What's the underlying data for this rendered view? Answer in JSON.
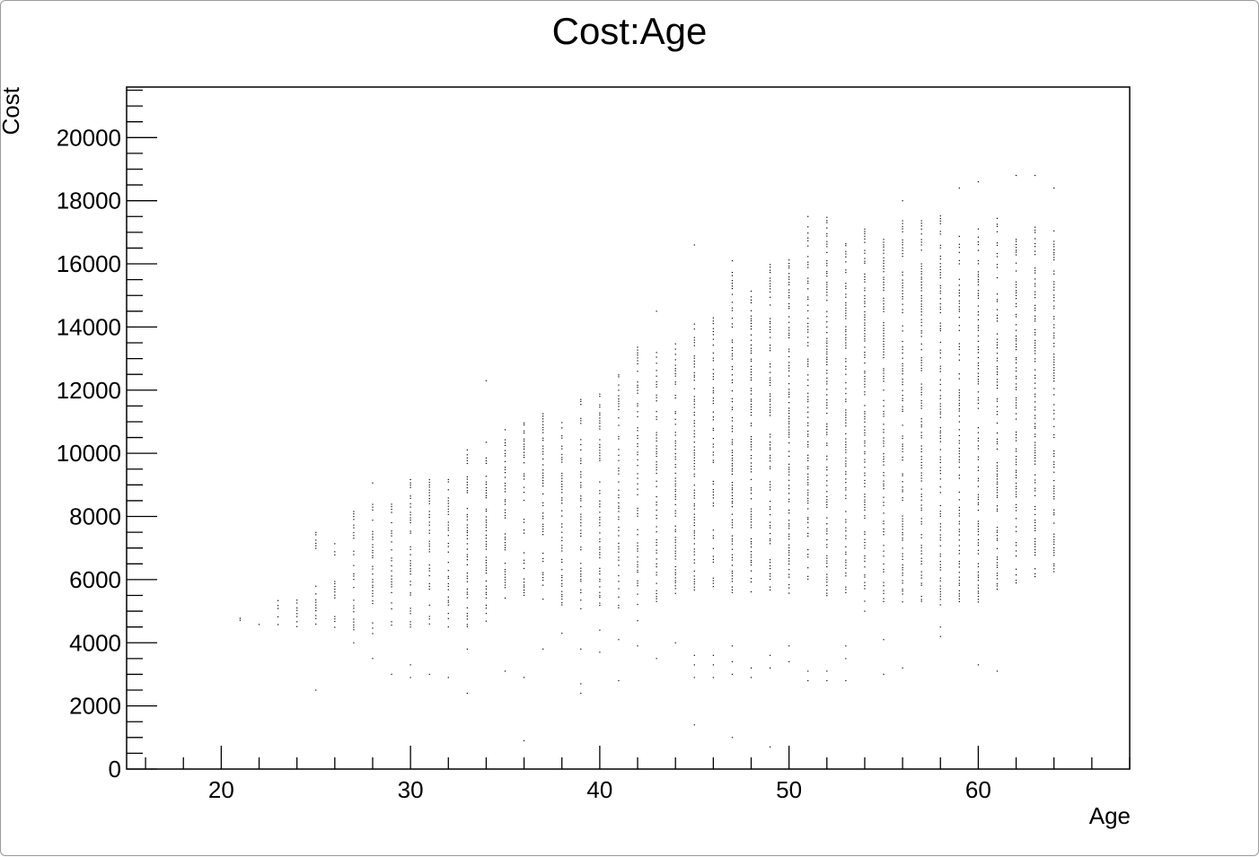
{
  "chart_data": {
    "type": "scatter",
    "title": "Cost:Age",
    "xlabel": "Age",
    "ylabel": "Cost",
    "xlim": [
      15,
      68
    ],
    "ylim": [
      0,
      21600
    ],
    "x_ticks": [
      20,
      30,
      40,
      50,
      60
    ],
    "y_ticks": [
      0,
      2000,
      4000,
      6000,
      8000,
      10000,
      12000,
      14000,
      16000,
      18000,
      20000
    ],
    "x_minor_step": 2,
    "y_minor_step": 500,
    "grid": false,
    "legend": "none",
    "marker_color": "#000000",
    "bands": [
      {
        "age": 21,
        "ranges": [
          [
            4700,
            4850
          ]
        ]
      },
      {
        "age": 22,
        "ranges": [
          [
            4500,
            4650
          ]
        ]
      },
      {
        "age": 23,
        "ranges": [
          [
            4400,
            5600
          ]
        ]
      },
      {
        "age": 24,
        "ranges": [
          [
            4500,
            5400
          ]
        ]
      },
      {
        "age": 25,
        "ranges": [
          [
            4600,
            5900
          ],
          [
            6900,
            7500
          ]
        ]
      },
      {
        "age": 26,
        "ranges": [
          [
            4500,
            6000
          ],
          [
            6700,
            7200
          ]
        ]
      },
      {
        "age": 27,
        "ranges": [
          [
            4400,
            6500
          ],
          [
            6800,
            8200
          ]
        ]
      },
      {
        "age": 28,
        "ranges": [
          [
            4300,
            9100
          ]
        ]
      },
      {
        "age": 29,
        "ranges": [
          [
            4400,
            8600
          ]
        ]
      },
      {
        "age": 30,
        "ranges": [
          [
            4400,
            9200
          ]
        ]
      },
      {
        "age": 31,
        "ranges": [
          [
            4500,
            9200
          ]
        ]
      },
      {
        "age": 32,
        "ranges": [
          [
            4500,
            9200
          ]
        ]
      },
      {
        "age": 33,
        "ranges": [
          [
            4500,
            10200
          ]
        ]
      },
      {
        "age": 34,
        "ranges": [
          [
            4500,
            10400
          ]
        ]
      },
      {
        "age": 35,
        "ranges": [
          [
            5400,
            10800
          ]
        ]
      },
      {
        "age": 36,
        "ranges": [
          [
            5500,
            7000
          ],
          [
            7400,
            11000
          ]
        ]
      },
      {
        "age": 37,
        "ranges": [
          [
            5300,
            11300
          ]
        ]
      },
      {
        "age": 38,
        "ranges": [
          [
            5200,
            11100
          ]
        ]
      },
      {
        "age": 39,
        "ranges": [
          [
            5000,
            11800
          ]
        ]
      },
      {
        "age": 40,
        "ranges": [
          [
            5000,
            12100
          ]
        ]
      },
      {
        "age": 41,
        "ranges": [
          [
            5100,
            12700
          ]
        ]
      },
      {
        "age": 42,
        "ranges": [
          [
            5200,
            13400
          ]
        ]
      },
      {
        "age": 43,
        "ranges": [
          [
            5300,
            13300
          ]
        ]
      },
      {
        "age": 44,
        "ranges": [
          [
            5300,
            13500
          ]
        ]
      },
      {
        "age": 45,
        "ranges": [
          [
            5600,
            14100
          ]
        ]
      },
      {
        "age": 46,
        "ranges": [
          [
            5700,
            14300
          ]
        ]
      },
      {
        "age": 47,
        "ranges": [
          [
            5600,
            15800
          ]
        ]
      },
      {
        "age": 48,
        "ranges": [
          [
            5600,
            15200
          ]
        ]
      },
      {
        "age": 49,
        "ranges": [
          [
            5600,
            16000
          ]
        ]
      },
      {
        "age": 50,
        "ranges": [
          [
            5400,
            16200
          ]
        ]
      },
      {
        "age": 51,
        "ranges": [
          [
            5600,
            17500
          ]
        ]
      },
      {
        "age": 52,
        "ranges": [
          [
            5400,
            17500
          ]
        ]
      },
      {
        "age": 53,
        "ranges": [
          [
            5600,
            16700
          ]
        ]
      },
      {
        "age": 54,
        "ranges": [
          [
            5300,
            17300
          ]
        ]
      },
      {
        "age": 55,
        "ranges": [
          [
            5300,
            16800
          ]
        ]
      },
      {
        "age": 56,
        "ranges": [
          [
            5200,
            17500
          ]
        ]
      },
      {
        "age": 57,
        "ranges": [
          [
            5300,
            17500
          ]
        ]
      },
      {
        "age": 58,
        "ranges": [
          [
            5200,
            17600
          ]
        ]
      },
      {
        "age": 59,
        "ranges": [
          [
            5300,
            16900
          ]
        ]
      },
      {
        "age": 60,
        "ranges": [
          [
            5300,
            17200
          ]
        ]
      },
      {
        "age": 61,
        "ranges": [
          [
            5700,
            17500
          ]
        ]
      },
      {
        "age": 62,
        "ranges": [
          [
            5900,
            16900
          ]
        ]
      },
      {
        "age": 63,
        "ranges": [
          [
            6100,
            17200
          ]
        ]
      },
      {
        "age": 64,
        "ranges": [
          [
            6000,
            17100
          ]
        ]
      }
    ],
    "points": [
      [
        25,
        2500
      ],
      [
        27,
        4000
      ],
      [
        28,
        3500
      ],
      [
        29,
        3000
      ],
      [
        30,
        2900
      ],
      [
        30,
        3300
      ],
      [
        31,
        3000
      ],
      [
        32,
        2900
      ],
      [
        33,
        2400
      ],
      [
        33,
        3800
      ],
      [
        34,
        12300
      ],
      [
        35,
        3100
      ],
      [
        36,
        2900
      ],
      [
        36,
        900
      ],
      [
        37,
        3800
      ],
      [
        38,
        4300
      ],
      [
        39,
        2400
      ],
      [
        39,
        2700
      ],
      [
        39,
        3800
      ],
      [
        40,
        3700
      ],
      [
        40,
        4400
      ],
      [
        41,
        2800
      ],
      [
        41,
        4100
      ],
      [
        42,
        4700
      ],
      [
        42,
        3900
      ],
      [
        43,
        3500
      ],
      [
        43,
        14500
      ],
      [
        44,
        4000
      ],
      [
        45,
        2900
      ],
      [
        45,
        3300
      ],
      [
        45,
        3600
      ],
      [
        45,
        1400
      ],
      [
        45,
        16600
      ],
      [
        46,
        2900
      ],
      [
        46,
        3300
      ],
      [
        46,
        3600
      ],
      [
        47,
        3000
      ],
      [
        47,
        3400
      ],
      [
        47,
        3900
      ],
      [
        47,
        1000
      ],
      [
        47,
        16100
      ],
      [
        48,
        2900
      ],
      [
        48,
        3200
      ],
      [
        49,
        3200
      ],
      [
        49,
        3600
      ],
      [
        49,
        700
      ],
      [
        50,
        3400
      ],
      [
        50,
        3900
      ],
      [
        51,
        2800
      ],
      [
        51,
        3100
      ],
      [
        52,
        2800
      ],
      [
        52,
        3100
      ],
      [
        53,
        2800
      ],
      [
        53,
        3500
      ],
      [
        53,
        3900
      ],
      [
        54,
        5000
      ],
      [
        55,
        3000
      ],
      [
        55,
        4100
      ],
      [
        56,
        3200
      ],
      [
        56,
        18000
      ],
      [
        58,
        4200
      ],
      [
        58,
        4500
      ],
      [
        59,
        18400
      ],
      [
        60,
        3300
      ],
      [
        60,
        18600
      ],
      [
        61,
        3100
      ],
      [
        62,
        18800
      ],
      [
        63,
        18800
      ],
      [
        64,
        18400
      ]
    ]
  }
}
